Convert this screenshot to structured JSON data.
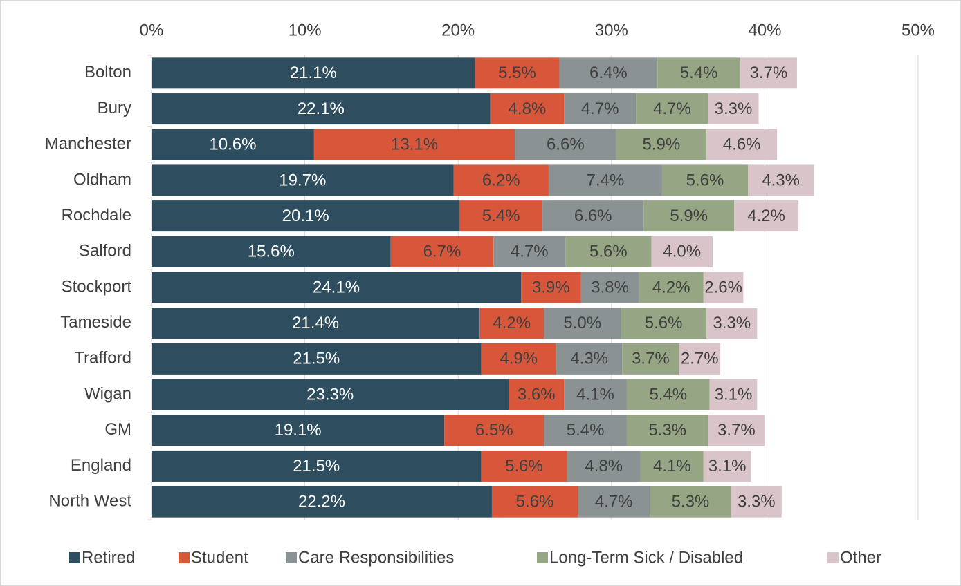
{
  "chart_data": {
    "type": "stacked-barh",
    "categories": [
      "Bolton",
      "Bury",
      "Manchester",
      "Oldham",
      "Rochdale",
      "Salford",
      "Stockport",
      "Tameside",
      "Trafford",
      "Wigan",
      "GM",
      "England",
      "North West"
    ],
    "xlim": [
      0,
      50
    ],
    "xticks": [
      {
        "value": 0,
        "label": "0%"
      },
      {
        "value": 10,
        "label": "10%"
      },
      {
        "value": 20,
        "label": "20%"
      },
      {
        "value": 30,
        "label": "30%"
      },
      {
        "value": 40,
        "label": "40%"
      },
      {
        "value": 50,
        "label": "50%"
      }
    ],
    "grid": true,
    "legend": "bottom",
    "series": [
      {
        "name": "Retired",
        "color": "#2e4e5f",
        "label_color": "#ffffff",
        "values": [
          21.1,
          22.1,
          10.6,
          19.7,
          20.1,
          15.6,
          24.1,
          21.4,
          21.5,
          23.3,
          19.1,
          21.5,
          22.2
        ],
        "value_labels": [
          "21.1%",
          "22.1%",
          "10.6%",
          "19.7%",
          "20.1%",
          "15.6%",
          "24.1%",
          "21.4%",
          "21.5%",
          "23.3%",
          "19.1%",
          "21.5%",
          "22.2%"
        ]
      },
      {
        "name": "Student",
        "color": "#d8573b",
        "label_color": "#404040",
        "values": [
          5.5,
          4.8,
          13.1,
          6.2,
          5.4,
          6.7,
          3.9,
          4.2,
          4.9,
          3.6,
          6.5,
          5.6,
          5.6
        ],
        "value_labels": [
          "5.5%",
          "4.8%",
          "13.1%",
          "6.2%",
          "5.4%",
          "6.7%",
          "3.9%",
          "4.2%",
          "4.9%",
          "3.6%",
          "6.5%",
          "5.6%",
          "5.6%"
        ]
      },
      {
        "name": "Care Responsibilities",
        "color": "#8b9293",
        "label_color": "#404040",
        "values": [
          6.4,
          4.7,
          6.6,
          7.4,
          6.6,
          4.7,
          3.8,
          5.0,
          4.3,
          4.1,
          5.4,
          4.8,
          4.7
        ],
        "value_labels": [
          "6.4%",
          "4.7%",
          "6.6%",
          "7.4%",
          "6.6%",
          "4.7%",
          "3.8%",
          "5.0%",
          "4.3%",
          "4.1%",
          "5.4%",
          "4.8%",
          "4.7%"
        ]
      },
      {
        "name": "Long-Term Sick / Disabled",
        "color": "#96a583",
        "label_color": "#404040",
        "values": [
          5.4,
          4.7,
          5.9,
          5.6,
          5.9,
          5.6,
          4.2,
          5.6,
          3.7,
          5.4,
          5.3,
          4.1,
          5.3
        ],
        "value_labels": [
          "5.4%",
          "4.7%",
          "5.9%",
          "5.6%",
          "5.9%",
          "5.6%",
          "4.2%",
          "5.6%",
          "3.7%",
          "5.4%",
          "5.3%",
          "4.1%",
          "5.3%"
        ]
      },
      {
        "name": "Other",
        "color": "#d9c4c9",
        "label_color": "#404040",
        "values": [
          3.7,
          3.3,
          4.6,
          4.3,
          4.2,
          4.0,
          2.6,
          3.3,
          2.7,
          3.1,
          3.7,
          3.1,
          3.3
        ],
        "value_labels": [
          "3.7%",
          "3.3%",
          "4.6%",
          "4.3%",
          "4.2%",
          "4.0%",
          "2.6%",
          "3.3%",
          "2.7%",
          "3.1%",
          "3.7%",
          "3.1%",
          "3.3%"
        ]
      }
    ]
  }
}
